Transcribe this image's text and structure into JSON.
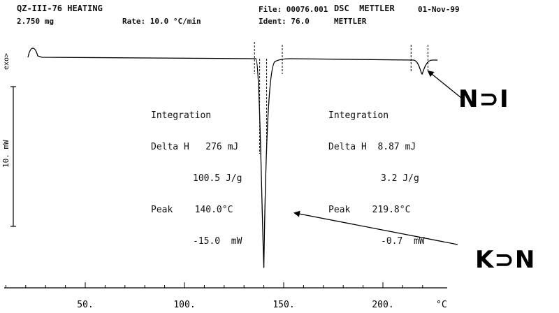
{
  "header": {
    "sample": "QZ-III-76 HEATING",
    "mass": "2.750 mg",
    "rate": "Rate: 10.0 °C/min",
    "file": "File: 00076.001",
    "ident": "Ident: 76.0",
    "instrument": "DSC  METTLER",
    "instrument2": "METTLER",
    "date": "01-Nov-99"
  },
  "phases": {
    "kn": "K⊃N",
    "ni": "N⊃I"
  },
  "chart_data": {
    "type": "line",
    "xlabel": "°C",
    "xticks": [
      50,
      100,
      150,
      200
    ],
    "xtick_labels": [
      "50.",
      "100.",
      "150.",
      "200."
    ],
    "xlim": [
      10,
      228
    ],
    "ylabel": "10. mW",
    "exo_label": "exo>",
    "integration_left": {
      "title": "Integration",
      "delta_h": "Delta H   276 mJ",
      "delta_h_spec": "100.5 J/g",
      "peak": "Peak    140.0°C",
      "peak_power": "-15.0  mW"
    },
    "integration_right": {
      "title": "Integration",
      "delta_h": "Delta H  8.87 mJ",
      "delta_h_spec": "3.2 J/g",
      "peak": "Peak    219.8°C",
      "peak_power": "-0.7  mW"
    },
    "events": [
      {
        "label": "K-N",
        "onset_c": 136,
        "peak_c": 140.0,
        "end_c": 150,
        "peak_mw": -15.0
      },
      {
        "label": "N-I",
        "onset_c": 217,
        "peak_c": 219.8,
        "end_c": 222,
        "peak_mw": -0.7
      }
    ]
  }
}
